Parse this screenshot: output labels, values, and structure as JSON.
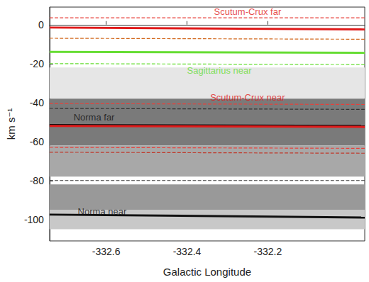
{
  "chart_data": {
    "type": "line",
    "x_label": "Galactic Longitude",
    "y_label": "km s⁻¹",
    "xlim": [
      -332.74,
      -331.96
    ],
    "xticks": [
      -332.6,
      -332.4,
      -332.2
    ],
    "ylim": [
      -111,
      9
    ],
    "yticks": [
      -100,
      -80,
      -60,
      -40,
      -20,
      0
    ],
    "grid": false,
    "emission_bands": [
      {
        "from": -22,
        "to": -38,
        "color": "#e6e6e6"
      },
      {
        "from": -38,
        "to": -62,
        "color": "#7a7a7a"
      },
      {
        "from": -62,
        "to": -78,
        "color": "#a8a8a8"
      },
      {
        "from": -82,
        "to": -95,
        "color": "#999999"
      },
      {
        "from": -95,
        "to": -105,
        "color": "#c8c8c8"
      }
    ],
    "series": [
      {
        "color": "#e8403a",
        "line_style": "dashed",
        "x": [
          -332.74,
          -331.96
        ],
        "values": [
          3.5,
          3.5
        ]
      },
      {
        "color": "#e01a1a",
        "line_style": "solid",
        "x": [
          -332.74,
          -331.96
        ],
        "values": [
          -1.5,
          -2.5
        ]
      },
      {
        "color": "#d2691e",
        "line_style": "dashed",
        "x": [
          -332.74,
          -331.96
        ],
        "values": [
          -7,
          -7.5
        ]
      },
      {
        "color": "#66dd33",
        "line_style": "solid",
        "x": [
          -332.74,
          -331.96
        ],
        "values": [
          -14,
          -14.5
        ]
      },
      {
        "color": "#66dd33",
        "line_style": "dashed",
        "x": [
          -332.74,
          -331.96
        ],
        "values": [
          -20,
          -20.5
        ]
      },
      {
        "color": "#e8403a",
        "line_style": "dashed",
        "x": [
          -332.74,
          -331.96
        ],
        "values": [
          -40.5,
          -41
        ]
      },
      {
        "color": "#333333",
        "line_style": "dashed",
        "x": [
          -332.74,
          -331.96
        ],
        "values": [
          -43,
          -43.5
        ]
      },
      {
        "color": "#111111",
        "line_style": "solid",
        "x": [
          -332.74,
          -331.96
        ],
        "values": [
          -51.5,
          -52
        ]
      },
      {
        "color": "#e01a1a",
        "line_style": "solid",
        "x": [
          -332.74,
          -331.96
        ],
        "values": [
          -52,
          -52.5
        ]
      },
      {
        "color": "#e8403a",
        "line_style": "dashed",
        "x": [
          -332.74,
          -331.96
        ],
        "values": [
          -63,
          -63.5
        ]
      },
      {
        "color": "#c0392b",
        "line_style": "dashed",
        "x": [
          -332.74,
          -331.96
        ],
        "values": [
          -65.5,
          -66
        ]
      },
      {
        "color": "#333333",
        "line_style": "dashed",
        "x": [
          -332.74,
          -331.96
        ],
        "values": [
          -80,
          -80
        ]
      },
      {
        "color": "#111111",
        "line_style": "solid",
        "x": [
          -332.74,
          -331.96
        ],
        "values": [
          -97.5,
          -99
        ]
      }
    ],
    "annotations": [
      {
        "text": "Scutum-Crux far",
        "x": -332.25,
        "y": 6.5,
        "color": "#e01a1a"
      },
      {
        "text": "Sagittarius near",
        "x": -332.32,
        "y": -23.5,
        "color": "#66dd33"
      },
      {
        "text": "Scutum-Crux near",
        "x": -332.25,
        "y": -37.5,
        "color": "#e01a1a"
      },
      {
        "text": "Norma far",
        "x": -332.63,
        "y": -47.5,
        "color": "#111111"
      },
      {
        "text": "Norma near",
        "x": -332.61,
        "y": -96,
        "color": "#111111"
      }
    ]
  }
}
